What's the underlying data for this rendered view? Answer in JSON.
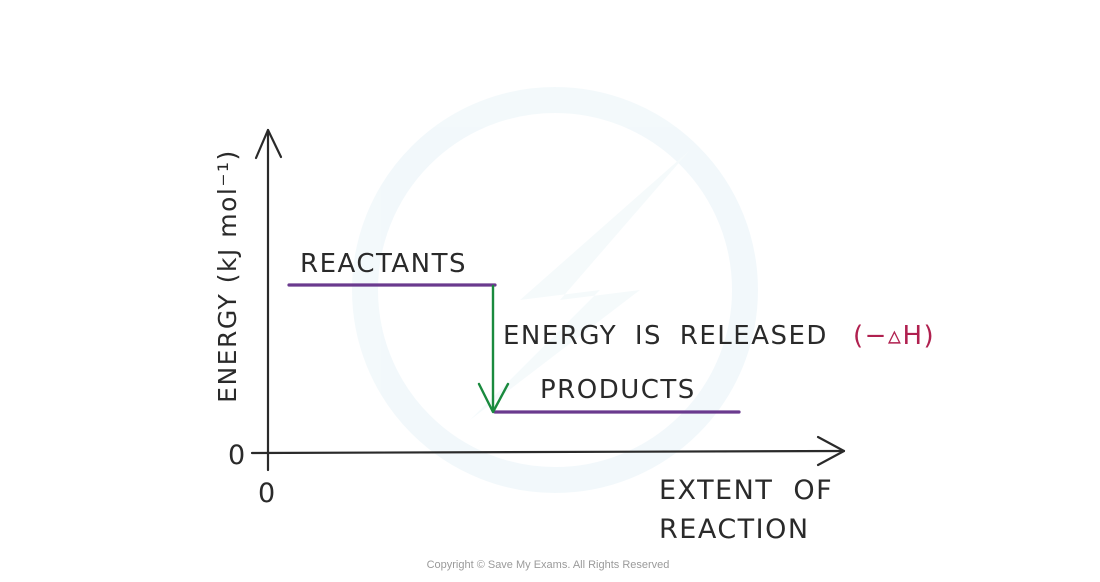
{
  "y_axis_label": "ENERGY (kJ mol⁻¹)",
  "x_axis_label_line1": "EXTENT OF",
  "x_axis_label_line2": "REACTION",
  "x_origin_label": "0",
  "y_origin_label": "0",
  "reactants_label": "REACTANTS",
  "products_label": "PRODUCTS",
  "energy_change_label": "ENERGY IS RELEASED",
  "delta_h_label": "(−▵H)",
  "copyright": "Copyright © Save My Exams. All Rights Reserved",
  "colors": {
    "level_line": "#6a3a8e",
    "arrow": "#1a8a3e",
    "delta_h": "#b0204f",
    "axes": "#2a2a2a",
    "watermark": "#e6f2f6"
  }
}
